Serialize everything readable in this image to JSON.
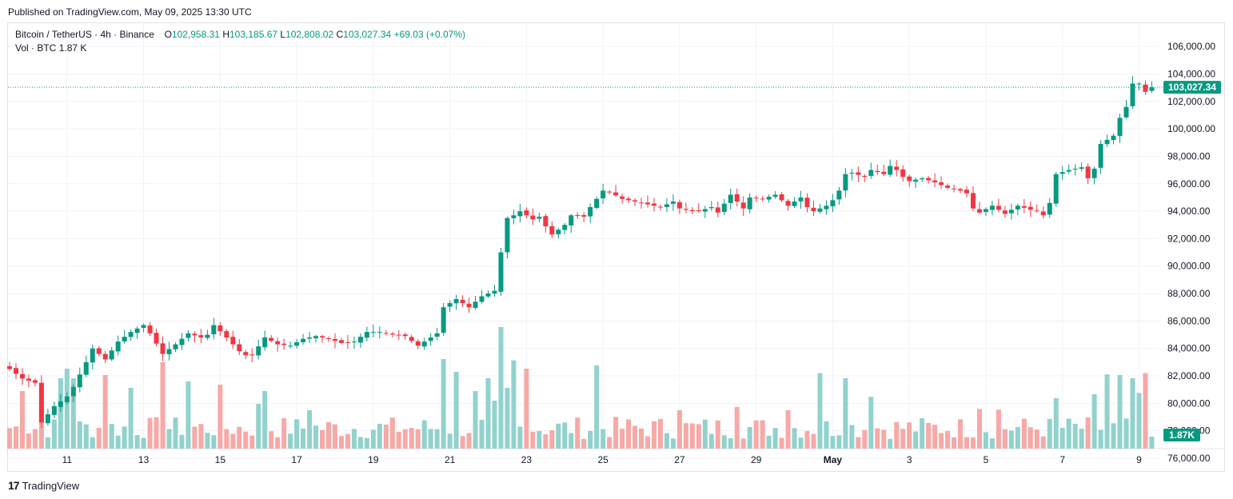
{
  "published": "Published on TradingView.com, May 09, 2025 13:30 UTC",
  "legend": {
    "symbol": "Bitcoin / TetherUS · 4h · Binance",
    "o_label": "O",
    "o_value": "102,958.31",
    "h_label": "H",
    "h_value": "103,185.67",
    "l_label": "L",
    "l_value": "102,808.02",
    "c_label": "C",
    "c_value": "103,027.34",
    "change": "+69.03 (+0.07%)",
    "vol_label": "Vol · BTC",
    "vol_value": "1.87 K"
  },
  "footer": {
    "logo": "17",
    "brand": "TradingView"
  },
  "colors": {
    "up": "#089981",
    "down": "#f23645",
    "up_vol": "#92d2cc",
    "down_vol": "#f7a9a7",
    "grid": "#f0f3fa"
  },
  "chart_data": {
    "type": "candlestick",
    "symbol": "BTCUSDT",
    "interval": "4h",
    "exchange": "Binance",
    "y_range": [
      76000,
      107000
    ],
    "y_ticks": [
      76000,
      78000,
      80000,
      82000,
      84000,
      86000,
      88000,
      90000,
      92000,
      94000,
      96000,
      98000,
      100000,
      102000,
      104000,
      106000
    ],
    "y_tick_labels": [
      "76,000.00",
      "78,000.00",
      "80,000.00",
      "82,000.00",
      "84,000.00",
      "86,000.00",
      "88,000.00",
      "90,000.00",
      "92,000.00",
      "94,000.00",
      "96,000.00",
      "98,000.00",
      "100,000.00",
      "102,000.00",
      "104,000.00",
      "106,000.00"
    ],
    "x_labels": [
      {
        "label": "11",
        "index": 9
      },
      {
        "label": "13",
        "index": 21
      },
      {
        "label": "15",
        "index": 33
      },
      {
        "label": "17",
        "index": 45
      },
      {
        "label": "19",
        "index": 57
      },
      {
        "label": "21",
        "index": 69
      },
      {
        "label": "23",
        "index": 81
      },
      {
        "label": "25",
        "index": 93
      },
      {
        "label": "27",
        "index": 105
      },
      {
        "label": "29",
        "index": 117
      },
      {
        "label": "May",
        "index": 129
      },
      {
        "label": "3",
        "index": 141
      },
      {
        "label": "5",
        "index": 153
      },
      {
        "label": "7",
        "index": 165
      },
      {
        "label": "9",
        "index": 177
      }
    ],
    "last_price_label": "103,027.34",
    "last_price": 103027.34,
    "last_volume_label": "1.87K",
    "volume_max": 20000,
    "close_anchors": [
      [
        0,
        82500
      ],
      [
        2,
        81800
      ],
      [
        4,
        81500
      ],
      [
        5,
        78600
      ],
      [
        6,
        79200
      ],
      [
        7,
        79800
      ],
      [
        9,
        80500
      ],
      [
        10,
        81200
      ],
      [
        12,
        83000
      ],
      [
        13,
        84000
      ],
      [
        15,
        83200
      ],
      [
        17,
        84500
      ],
      [
        19,
        85200
      ],
      [
        21,
        85700
      ],
      [
        22,
        85100
      ],
      [
        24,
        83600
      ],
      [
        26,
        84300
      ],
      [
        28,
        85100
      ],
      [
        30,
        84800
      ],
      [
        31,
        85000
      ],
      [
        32,
        85700
      ],
      [
        34,
        84800
      ],
      [
        36,
        83800
      ],
      [
        37,
        83500
      ],
      [
        38,
        83500
      ],
      [
        40,
        84800
      ],
      [
        42,
        84300
      ],
      [
        44,
        84200
      ],
      [
        46,
        84700
      ],
      [
        48,
        84900
      ],
      [
        50,
        84700
      ],
      [
        52,
        84400
      ],
      [
        54,
        84500
      ],
      [
        56,
        85200
      ],
      [
        58,
        85200
      ],
      [
        60,
        85000
      ],
      [
        62,
        84900
      ],
      [
        64,
        84200
      ],
      [
        66,
        84800
      ],
      [
        67,
        85100
      ],
      [
        68,
        87000
      ],
      [
        70,
        87600
      ],
      [
        72,
        87000
      ],
      [
        74,
        87800
      ],
      [
        76,
        88200
      ],
      [
        77,
        91000
      ],
      [
        78,
        93500
      ],
      [
        79,
        93700
      ],
      [
        80,
        94000
      ],
      [
        82,
        93400
      ],
      [
        83,
        93600
      ],
      [
        84,
        92900
      ],
      [
        85,
        92300
      ],
      [
        87,
        93000
      ],
      [
        88,
        93700
      ],
      [
        90,
        93600
      ],
      [
        91,
        94300
      ],
      [
        93,
        95500
      ],
      [
        94,
        95400
      ],
      [
        96,
        94900
      ],
      [
        98,
        94700
      ],
      [
        100,
        94500
      ],
      [
        102,
        94300
      ],
      [
        104,
        94700
      ],
      [
        105,
        94200
      ],
      [
        107,
        94000
      ],
      [
        108,
        94000
      ],
      [
        110,
        94300
      ],
      [
        111,
        93900
      ],
      [
        113,
        95200
      ],
      [
        114,
        94700
      ],
      [
        115,
        94200
      ],
      [
        116,
        95000
      ],
      [
        118,
        94900
      ],
      [
        120,
        95200
      ],
      [
        121,
        94800
      ],
      [
        122,
        94400
      ],
      [
        124,
        95000
      ],
      [
        125,
        94300
      ],
      [
        126,
        94000
      ],
      [
        127,
        94200
      ],
      [
        128,
        94400
      ],
      [
        129,
        94800
      ],
      [
        130,
        95500
      ],
      [
        131,
        96700
      ],
      [
        132,
        96800
      ],
      [
        134,
        96500
      ],
      [
        135,
        97000
      ],
      [
        137,
        96700
      ],
      [
        138,
        97300
      ],
      [
        139,
        97000
      ],
      [
        140,
        96500
      ],
      [
        141,
        96200
      ],
      [
        143,
        96400
      ],
      [
        145,
        96100
      ],
      [
        147,
        95700
      ],
      [
        149,
        95500
      ],
      [
        150,
        95300
      ],
      [
        151,
        94200
      ],
      [
        152,
        93900
      ],
      [
        154,
        94400
      ],
      [
        156,
        93800
      ],
      [
        158,
        94400
      ],
      [
        160,
        94100
      ],
      [
        161,
        94000
      ],
      [
        162,
        93700
      ],
      [
        163,
        94600
      ],
      [
        164,
        96700
      ],
      [
        166,
        97000
      ],
      [
        168,
        97200
      ],
      [
        169,
        96400
      ],
      [
        170,
        97100
      ],
      [
        171,
        98900
      ],
      [
        173,
        99500
      ],
      [
        174,
        100800
      ],
      [
        175,
        101600
      ],
      [
        176,
        103300
      ],
      [
        177,
        103300
      ],
      [
        178,
        102700
      ],
      [
        179,
        103027
      ]
    ],
    "volume_spikes": [
      [
        2,
        9000
      ],
      [
        5,
        7500
      ],
      [
        8,
        11000
      ],
      [
        9,
        12500
      ],
      [
        10,
        11000
      ],
      [
        15,
        11500
      ],
      [
        19,
        9500
      ],
      [
        24,
        13500
      ],
      [
        28,
        10500
      ],
      [
        33,
        10000
      ],
      [
        39,
        7000
      ],
      [
        40,
        9000
      ],
      [
        47,
        6000
      ],
      [
        68,
        14000
      ],
      [
        70,
        12000
      ],
      [
        73,
        9000
      ],
      [
        75,
        11000
      ],
      [
        76,
        7500
      ],
      [
        77,
        19000
      ],
      [
        78,
        9500
      ],
      [
        79,
        13800
      ],
      [
        81,
        12500
      ],
      [
        92,
        13000
      ],
      [
        105,
        6000
      ],
      [
        114,
        6500
      ],
      [
        122,
        6000
      ],
      [
        127,
        11800
      ],
      [
        131,
        11000
      ],
      [
        135,
        8100
      ],
      [
        152,
        6200
      ],
      [
        155,
        6100
      ],
      [
        164,
        7900
      ],
      [
        170,
        8500
      ],
      [
        172,
        11600
      ],
      [
        174,
        11500
      ],
      [
        176,
        11000
      ],
      [
        177,
        8700
      ],
      [
        178,
        11800
      ]
    ]
  }
}
